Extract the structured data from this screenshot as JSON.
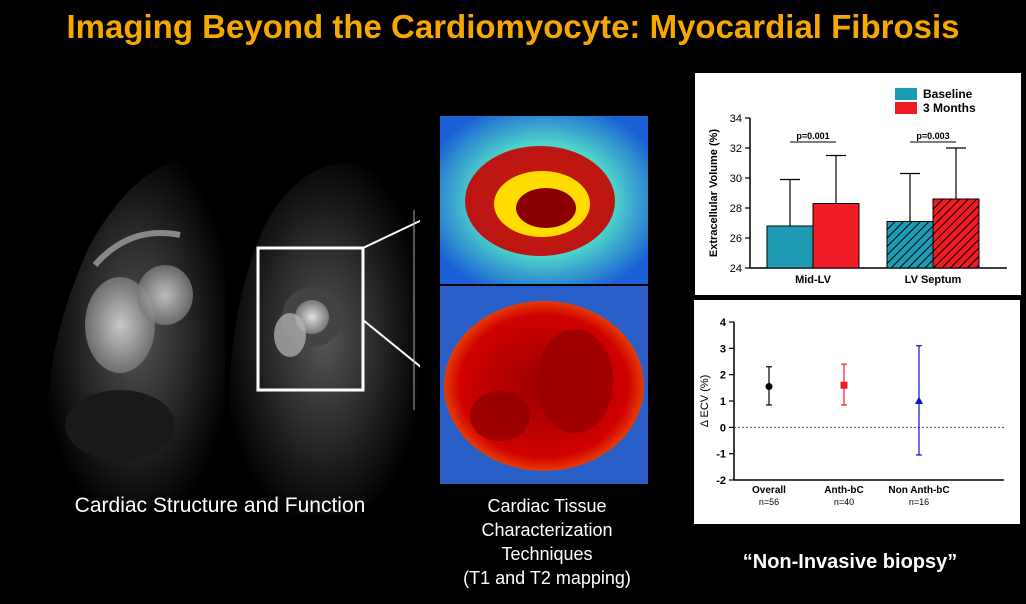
{
  "slide": {
    "title": "Imaging Beyond the Cardiomyocyte: Myocardial Fibrosis",
    "caption_left": "Cardiac Structure and Function",
    "caption_middle_lines": [
      "Cardiac Tissue",
      "Characterization",
      "Techniques",
      "(T1 and T2 mapping)"
    ],
    "caption_right": "“Non-Invasive biopsy”"
  },
  "colors": {
    "title": "#f6a800",
    "baseline": "#1e9bb3",
    "three_months": "#ee1c25",
    "overall": "#000000",
    "anth": "#ee1c25",
    "non_anth": "#1010c8"
  },
  "chart_data": [
    {
      "type": "bar",
      "ylabel": "Extracellular Volume (%)",
      "ylim": [
        24,
        34
      ],
      "yticks": [
        24,
        26,
        28,
        30,
        32,
        34
      ],
      "categories": [
        "Mid-LV",
        "LV Septum"
      ],
      "series": [
        {
          "name": "Baseline",
          "values": [
            26.8,
            27.1
          ],
          "error_upper": [
            29.9,
            30.3
          ]
        },
        {
          "name": "3 Months",
          "values": [
            28.3,
            28.6
          ],
          "error_upper": [
            31.5,
            32.0
          ]
        }
      ],
      "annotations": [
        "p=0.001",
        "p=0.003"
      ],
      "legend": "top-right",
      "grid": false
    },
    {
      "type": "scatter",
      "ylabel": "Δ ECV (%)",
      "ylim": [
        -2,
        4
      ],
      "yticks": [
        -2,
        -1,
        0,
        1,
        2,
        3,
        4
      ],
      "categories": [
        "Overall",
        "Anth-bC",
        "Non Anth-bC"
      ],
      "sublabels": [
        "n=56",
        "n=40",
        "n=16"
      ],
      "values": [
        1.55,
        1.6,
        1.0
      ],
      "error_low": [
        0.85,
        0.85,
        -1.05
      ],
      "error_high": [
        2.3,
        2.4,
        3.1
      ],
      "markers": [
        "circle",
        "square",
        "triangle"
      ],
      "reference_line": 0
    }
  ]
}
